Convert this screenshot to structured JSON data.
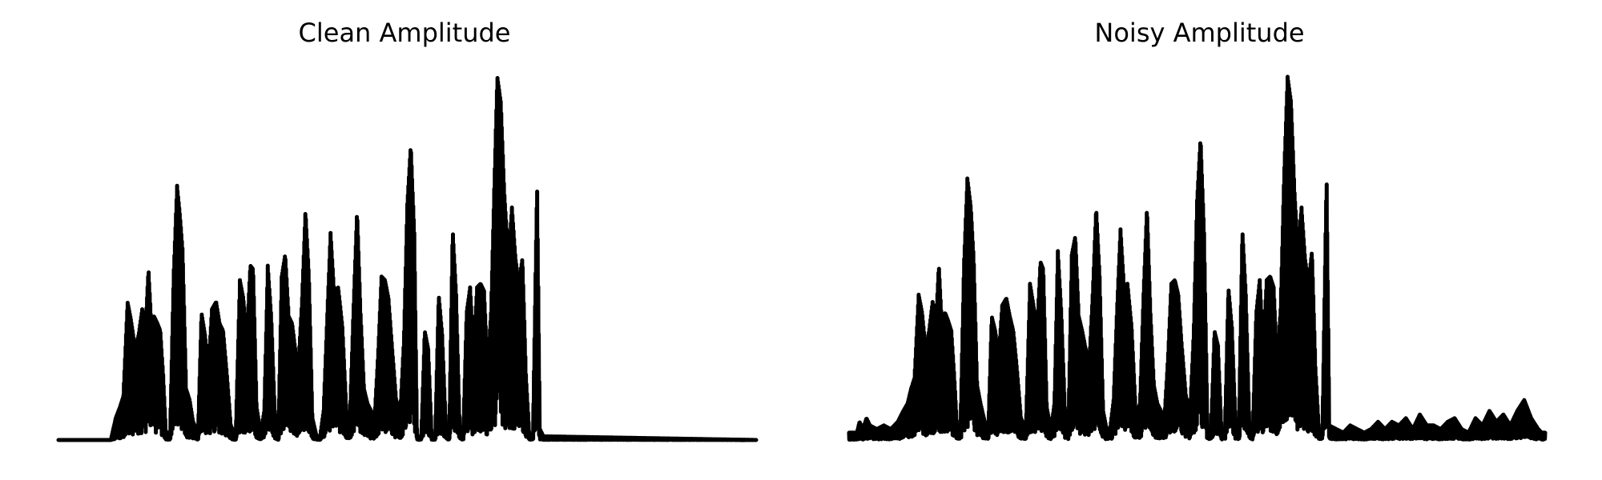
{
  "chart_data": [
    {
      "type": "line",
      "title": "Clean Amplitude",
      "axes": "off",
      "grid": false,
      "color": "#000000",
      "ylim": [
        0,
        1.0
      ],
      "envelope": [
        [
          0.0,
          0.0
        ],
        [
          0.075,
          0.0
        ],
        [
          0.082,
          0.06
        ],
        [
          0.088,
          0.09
        ],
        [
          0.093,
          0.12
        ],
        [
          0.099,
          0.38
        ],
        [
          0.104,
          0.33
        ],
        [
          0.11,
          0.25
        ],
        [
          0.115,
          0.29
        ],
        [
          0.12,
          0.36
        ],
        [
          0.125,
          0.32
        ],
        [
          0.129,
          0.47
        ],
        [
          0.133,
          0.32
        ],
        [
          0.137,
          0.34
        ],
        [
          0.142,
          0.32
        ],
        [
          0.146,
          0.3
        ],
        [
          0.15,
          0.18
        ],
        [
          0.154,
          0.02
        ],
        [
          0.16,
          0.02
        ],
        [
          0.165,
          0.45
        ],
        [
          0.17,
          0.7
        ],
        [
          0.174,
          0.62
        ],
        [
          0.178,
          0.52
        ],
        [
          0.183,
          0.14
        ],
        [
          0.188,
          0.11
        ],
        [
          0.193,
          0.05
        ],
        [
          0.2,
          0.02
        ],
        [
          0.205,
          0.35
        ],
        [
          0.21,
          0.29
        ],
        [
          0.215,
          0.2
        ],
        [
          0.22,
          0.36
        ],
        [
          0.226,
          0.38
        ],
        [
          0.231,
          0.32
        ],
        [
          0.236,
          0.3
        ],
        [
          0.241,
          0.19
        ],
        [
          0.247,
          0.04
        ],
        [
          0.254,
          0.01
        ],
        [
          0.26,
          0.44
        ],
        [
          0.265,
          0.39
        ],
        [
          0.27,
          0.28
        ],
        [
          0.275,
          0.48
        ],
        [
          0.279,
          0.47
        ],
        [
          0.284,
          0.09
        ],
        [
          0.29,
          0.02
        ],
        [
          0.295,
          0.08
        ],
        [
          0.3,
          0.48
        ],
        [
          0.305,
          0.34
        ],
        [
          0.31,
          0.08
        ],
        [
          0.315,
          0.01
        ],
        [
          0.32,
          0.45
        ],
        [
          0.325,
          0.51
        ],
        [
          0.33,
          0.34
        ],
        [
          0.335,
          0.32
        ],
        [
          0.34,
          0.24
        ],
        [
          0.344,
          0.21
        ],
        [
          0.349,
          0.38
        ],
        [
          0.354,
          0.63
        ],
        [
          0.359,
          0.45
        ],
        [
          0.364,
          0.06
        ],
        [
          0.37,
          0.01
        ],
        [
          0.375,
          0.01
        ],
        [
          0.38,
          0.08
        ],
        [
          0.385,
          0.33
        ],
        [
          0.39,
          0.57
        ],
        [
          0.395,
          0.41
        ],
        [
          0.401,
          0.42
        ],
        [
          0.407,
          0.31
        ],
        [
          0.413,
          0.07
        ],
        [
          0.418,
          0.08
        ],
        [
          0.423,
          0.37
        ],
        [
          0.428,
          0.63
        ],
        [
          0.433,
          0.35
        ],
        [
          0.438,
          0.14
        ],
        [
          0.443,
          0.1
        ],
        [
          0.448,
          0.08
        ],
        [
          0.453,
          0.06
        ],
        [
          0.458,
          0.23
        ],
        [
          0.463,
          0.45
        ],
        [
          0.468,
          0.44
        ],
        [
          0.473,
          0.39
        ],
        [
          0.478,
          0.26
        ],
        [
          0.484,
          0.11
        ],
        [
          0.49,
          0.08
        ],
        [
          0.495,
          0.27
        ],
        [
          0.5,
          0.65
        ],
        [
          0.505,
          0.81
        ],
        [
          0.51,
          0.57
        ],
        [
          0.514,
          0.01
        ],
        [
          0.52,
          0.01
        ],
        [
          0.525,
          0.3
        ],
        [
          0.53,
          0.25
        ],
        [
          0.535,
          0.01
        ],
        [
          0.54,
          0.01
        ],
        [
          0.545,
          0.4
        ],
        [
          0.55,
          0.29
        ],
        [
          0.555,
          0.05
        ],
        [
          0.56,
          0.01
        ],
        [
          0.565,
          0.58
        ],
        [
          0.57,
          0.4
        ],
        [
          0.575,
          0.04
        ],
        [
          0.58,
          0.01
        ],
        [
          0.585,
          0.35
        ],
        [
          0.59,
          0.42
        ],
        [
          0.595,
          0.25
        ],
        [
          0.6,
          0.42
        ],
        [
          0.605,
          0.43
        ],
        [
          0.61,
          0.41
        ],
        [
          0.615,
          0.2
        ],
        [
          0.62,
          0.35
        ],
        [
          0.625,
          0.72
        ],
        [
          0.629,
          1.0
        ],
        [
          0.634,
          0.93
        ],
        [
          0.639,
          0.68
        ],
        [
          0.645,
          0.5
        ],
        [
          0.65,
          0.64
        ],
        [
          0.655,
          0.5
        ],
        [
          0.66,
          0.43
        ],
        [
          0.665,
          0.5
        ],
        [
          0.67,
          0.18
        ],
        [
          0.675,
          0.01
        ],
        [
          0.68,
          0.01
        ],
        [
          0.686,
          0.71
        ],
        [
          0.69,
          0.03
        ],
        [
          0.695,
          0.01
        ],
        [
          1.0,
          0.0
        ]
      ],
      "noise_floor": 0.0
    },
    {
      "type": "line",
      "title": "Noisy Amplitude",
      "axes": "off",
      "grid": false,
      "color": "#000000",
      "ylim": [
        0,
        1.0
      ],
      "envelope": [
        [
          0.0,
          0.0
        ],
        [
          0.01,
          0.01
        ],
        [
          0.015,
          0.05
        ],
        [
          0.02,
          0.03
        ],
        [
          0.025,
          0.06
        ],
        [
          0.03,
          0.04
        ],
        [
          0.04,
          0.03
        ],
        [
          0.05,
          0.04
        ],
        [
          0.06,
          0.03
        ],
        [
          0.07,
          0.05
        ],
        [
          0.078,
          0.08
        ],
        [
          0.084,
          0.1
        ],
        [
          0.089,
          0.14
        ],
        [
          0.094,
          0.17
        ],
        [
          0.1,
          0.4
        ],
        [
          0.105,
          0.35
        ],
        [
          0.11,
          0.25
        ],
        [
          0.115,
          0.3
        ],
        [
          0.12,
          0.38
        ],
        [
          0.125,
          0.33
        ],
        [
          0.129,
          0.48
        ],
        [
          0.133,
          0.33
        ],
        [
          0.138,
          0.35
        ],
        [
          0.142,
          0.33
        ],
        [
          0.147,
          0.3
        ],
        [
          0.151,
          0.18
        ],
        [
          0.155,
          0.04
        ],
        [
          0.16,
          0.03
        ],
        [
          0.165,
          0.48
        ],
        [
          0.17,
          0.72
        ],
        [
          0.175,
          0.64
        ],
        [
          0.179,
          0.5
        ],
        [
          0.184,
          0.15
        ],
        [
          0.189,
          0.1
        ],
        [
          0.195,
          0.05
        ],
        [
          0.2,
          0.03
        ],
        [
          0.205,
          0.34
        ],
        [
          0.21,
          0.3
        ],
        [
          0.215,
          0.23
        ],
        [
          0.22,
          0.37
        ],
        [
          0.226,
          0.39
        ],
        [
          0.231,
          0.34
        ],
        [
          0.236,
          0.3
        ],
        [
          0.241,
          0.2
        ],
        [
          0.247,
          0.06
        ],
        [
          0.254,
          0.03
        ],
        [
          0.26,
          0.43
        ],
        [
          0.265,
          0.37
        ],
        [
          0.27,
          0.3
        ],
        [
          0.275,
          0.49
        ],
        [
          0.279,
          0.47
        ],
        [
          0.284,
          0.09
        ],
        [
          0.29,
          0.03
        ],
        [
          0.295,
          0.1
        ],
        [
          0.3,
          0.52
        ],
        [
          0.305,
          0.35
        ],
        [
          0.31,
          0.09
        ],
        [
          0.315,
          0.03
        ],
        [
          0.32,
          0.51
        ],
        [
          0.325,
          0.56
        ],
        [
          0.33,
          0.34
        ],
        [
          0.335,
          0.3
        ],
        [
          0.34,
          0.25
        ],
        [
          0.345,
          0.21
        ],
        [
          0.35,
          0.4
        ],
        [
          0.355,
          0.64
        ],
        [
          0.36,
          0.45
        ],
        [
          0.365,
          0.08
        ],
        [
          0.37,
          0.03
        ],
        [
          0.375,
          0.03
        ],
        [
          0.38,
          0.11
        ],
        [
          0.385,
          0.36
        ],
        [
          0.39,
          0.58
        ],
        [
          0.395,
          0.42
        ],
        [
          0.4,
          0.43
        ],
        [
          0.406,
          0.31
        ],
        [
          0.412,
          0.07
        ],
        [
          0.418,
          0.1
        ],
        [
          0.423,
          0.4
        ],
        [
          0.428,
          0.64
        ],
        [
          0.433,
          0.35
        ],
        [
          0.438,
          0.15
        ],
        [
          0.443,
          0.1
        ],
        [
          0.448,
          0.08
        ],
        [
          0.453,
          0.06
        ],
        [
          0.458,
          0.22
        ],
        [
          0.463,
          0.43
        ],
        [
          0.468,
          0.44
        ],
        [
          0.473,
          0.4
        ],
        [
          0.478,
          0.26
        ],
        [
          0.484,
          0.12
        ],
        [
          0.49,
          0.08
        ],
        [
          0.495,
          0.29
        ],
        [
          0.5,
          0.66
        ],
        [
          0.505,
          0.83
        ],
        [
          0.51,
          0.57
        ],
        [
          0.515,
          0.03
        ],
        [
          0.52,
          0.03
        ],
        [
          0.525,
          0.3
        ],
        [
          0.53,
          0.26
        ],
        [
          0.535,
          0.03
        ],
        [
          0.54,
          0.03
        ],
        [
          0.545,
          0.42
        ],
        [
          0.55,
          0.31
        ],
        [
          0.555,
          0.06
        ],
        [
          0.56,
          0.03
        ],
        [
          0.565,
          0.58
        ],
        [
          0.57,
          0.4
        ],
        [
          0.575,
          0.05
        ],
        [
          0.58,
          0.03
        ],
        [
          0.585,
          0.35
        ],
        [
          0.59,
          0.44
        ],
        [
          0.595,
          0.26
        ],
        [
          0.6,
          0.44
        ],
        [
          0.605,
          0.45
        ],
        [
          0.61,
          0.42
        ],
        [
          0.615,
          0.21
        ],
        [
          0.62,
          0.36
        ],
        [
          0.625,
          0.73
        ],
        [
          0.63,
          1.0
        ],
        [
          0.635,
          0.93
        ],
        [
          0.64,
          0.68
        ],
        [
          0.645,
          0.52
        ],
        [
          0.65,
          0.64
        ],
        [
          0.655,
          0.5
        ],
        [
          0.66,
          0.43
        ],
        [
          0.665,
          0.52
        ],
        [
          0.67,
          0.2
        ],
        [
          0.675,
          0.03
        ],
        [
          0.68,
          0.03
        ],
        [
          0.686,
          0.73
        ],
        [
          0.69,
          0.04
        ],
        [
          0.7,
          0.03
        ],
        [
          0.71,
          0.02
        ],
        [
          0.72,
          0.04
        ],
        [
          0.73,
          0.03
        ],
        [
          0.74,
          0.02
        ],
        [
          0.75,
          0.03
        ],
        [
          0.76,
          0.05
        ],
        [
          0.77,
          0.03
        ],
        [
          0.78,
          0.05
        ],
        [
          0.79,
          0.04
        ],
        [
          0.8,
          0.06
        ],
        [
          0.81,
          0.03
        ],
        [
          0.82,
          0.07
        ],
        [
          0.83,
          0.04
        ],
        [
          0.84,
          0.04
        ],
        [
          0.85,
          0.03
        ],
        [
          0.86,
          0.05
        ],
        [
          0.87,
          0.06
        ],
        [
          0.88,
          0.03
        ],
        [
          0.89,
          0.02
        ],
        [
          0.9,
          0.06
        ],
        [
          0.91,
          0.04
        ],
        [
          0.92,
          0.08
        ],
        [
          0.93,
          0.05
        ],
        [
          0.94,
          0.07
        ],
        [
          0.95,
          0.04
        ],
        [
          0.96,
          0.08
        ],
        [
          0.97,
          0.11
        ],
        [
          0.98,
          0.06
        ],
        [
          0.99,
          0.03
        ],
        [
          1.0,
          0.01
        ]
      ],
      "noise_floor": 0.02
    }
  ]
}
